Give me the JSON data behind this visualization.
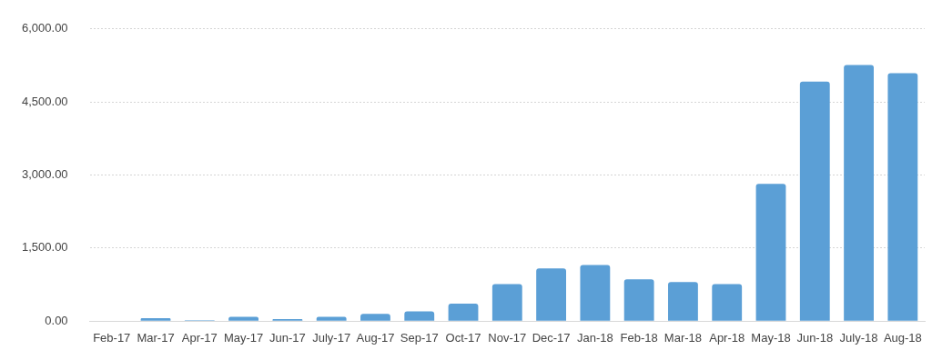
{
  "chart_data": {
    "type": "bar",
    "categories": [
      "Feb-17",
      "Mar-17",
      "Apr-17",
      "May-17",
      "Jun-17",
      "July-17",
      "Aug-17",
      "Sep-17",
      "Oct-17",
      "Nov-17",
      "Dec-17",
      "Jan-18",
      "Feb-18",
      "Mar-18",
      "Apr-18",
      "May-18",
      "Jun-18",
      "July-18",
      "Aug-18"
    ],
    "values": [
      0,
      60,
      20,
      90,
      40,
      90,
      150,
      200,
      360,
      760,
      1080,
      1150,
      860,
      800,
      760,
      2820,
      4920,
      5260,
      5090
    ],
    "color": "#5b9fd6",
    "ylim": [
      0,
      6000
    ],
    "yticks": [
      {
        "value": 0,
        "label": "0.00"
      },
      {
        "value": 1500,
        "label": "1,500.00"
      },
      {
        "value": 3000,
        "label": "3,000.00"
      },
      {
        "value": 4500,
        "label": "4,500.00"
      },
      {
        "value": 6000,
        "label": "6,000.00"
      }
    ],
    "grid": "y"
  }
}
